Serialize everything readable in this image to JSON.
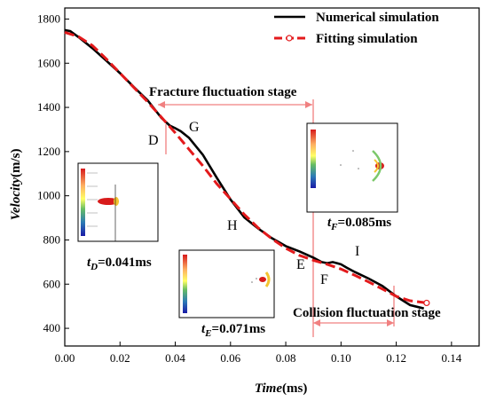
{
  "chart_data": {
    "type": "line",
    "xlabel": "Time",
    "xlabel_unit": "(ms)",
    "ylabel": "Velocity",
    "ylabel_unit": "(m/s)",
    "xlim": [
      0.0,
      0.15
    ],
    "ylim": [
      320,
      1850
    ],
    "x_ticks": [
      "0.00",
      "0.02",
      "0.04",
      "0.06",
      "0.08",
      "0.10",
      "0.12",
      "0.14"
    ],
    "y_ticks": [
      "400",
      "600",
      "800",
      "1000",
      "1200",
      "1400",
      "1600",
      "1800"
    ],
    "legend_position": "top-right",
    "series": [
      {
        "name": "Numerical simulation",
        "color": "#000000",
        "x": [
          0.0,
          0.002,
          0.005,
          0.01,
          0.015,
          0.02,
          0.025,
          0.03,
          0.035,
          0.038,
          0.04,
          0.042,
          0.045,
          0.05,
          0.055,
          0.06,
          0.065,
          0.07,
          0.075,
          0.08,
          0.085,
          0.09,
          0.093,
          0.095,
          0.097,
          0.1,
          0.102,
          0.105,
          0.11,
          0.115,
          0.12,
          0.125,
          0.13
        ],
        "values": [
          1750,
          1745,
          1718,
          1668,
          1612,
          1555,
          1492,
          1432,
          1352,
          1318,
          1306,
          1292,
          1262,
          1185,
          1082,
          983,
          902,
          852,
          808,
          772,
          748,
          720,
          700,
          695,
          700,
          690,
          675,
          655,
          625,
          592,
          545,
          505,
          490
        ]
      },
      {
        "name": "Fitting simulation",
        "color": "#e31a1c",
        "x": [
          0.0,
          0.005,
          0.01,
          0.015,
          0.02,
          0.025,
          0.03,
          0.035,
          0.04,
          0.045,
          0.05,
          0.055,
          0.06,
          0.065,
          0.07,
          0.075,
          0.08,
          0.085,
          0.09,
          0.095,
          0.1,
          0.105,
          0.11,
          0.115,
          0.12,
          0.125,
          0.131
        ],
        "values": [
          1740,
          1720,
          1680,
          1620,
          1555,
          1490,
          1425,
          1355,
          1285,
          1210,
          1135,
          1055,
          985,
          915,
          855,
          805,
          762,
          730,
          708,
          690,
          668,
          640,
          610,
          578,
          545,
          525,
          515
        ]
      }
    ],
    "annotations": {
      "fracture_stage": "Fracture fluctuation stage",
      "collision_stage": "Collision fluctuation stage",
      "points": [
        "D",
        "G",
        "H",
        "E",
        "F",
        "I"
      ]
    },
    "insets": {
      "d": {
        "prefix": "t",
        "sub": "D",
        "value": "=0.041ms"
      },
      "e": {
        "prefix": "t",
        "sub": "E",
        "value": "=0.071ms"
      },
      "f": {
        "prefix": "t",
        "sub": "F",
        "value": "=0.085ms"
      }
    }
  }
}
